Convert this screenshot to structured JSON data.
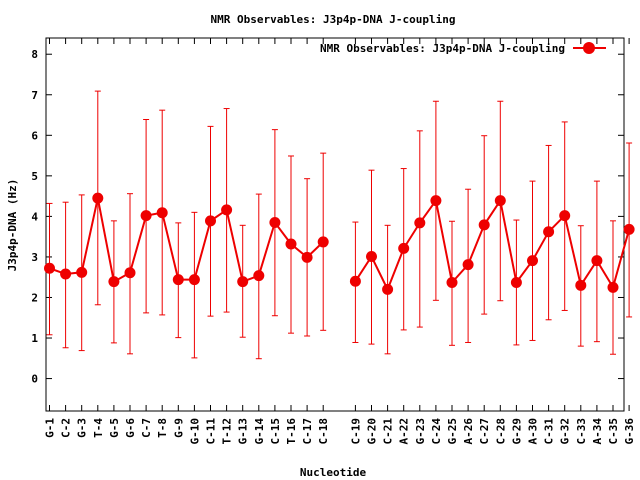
{
  "chart_data": {
    "type": "line",
    "title": "NMR Observables: J3p4p-DNA J-coupling",
    "xlabel": "Nucleotide",
    "ylabel": "J3p4p-DNA (Hz)",
    "ylim": [
      -0.8,
      8.4
    ],
    "yticks": [
      "0",
      "1",
      "2",
      "3",
      "4",
      "5",
      "6",
      "7",
      "8"
    ],
    "grid": false,
    "legend_position": "top-right",
    "color": "#ee0000",
    "series": [
      {
        "name": "NMR Observables: J3p4p-DNA J-coupling",
        "segments": [
          {
            "categories": [
              "G-1",
              "C-2",
              "G-3",
              "T-4",
              "G-5",
              "G-6",
              "C-7",
              "T-8",
              "G-9",
              "G-10",
              "C-11",
              "T-12",
              "G-13",
              "G-14",
              "C-15",
              "T-16",
              "C-17",
              "C-18"
            ],
            "values": [
              2.72,
              2.58,
              2.62,
              4.45,
              2.39,
              2.61,
              4.02,
              4.09,
              2.44,
              2.44,
              3.89,
              4.16,
              2.39,
              2.54,
              3.85,
              3.32,
              2.99,
              3.37
            ],
            "err_low": [
              1.08,
              0.76,
              0.69,
              1.82,
              0.88,
              0.61,
              1.62,
              1.57,
              1.01,
              0.51,
              1.54,
              1.64,
              1.02,
              0.49,
              1.55,
              1.12,
              1.05,
              1.19
            ],
            "err_high": [
              4.32,
              4.35,
              4.53,
              7.09,
              3.89,
              4.56,
              6.39,
              6.62,
              3.84,
              4.1,
              6.22,
              6.66,
              3.78,
              4.55,
              6.14,
              5.49,
              4.93,
              5.56
            ]
          },
          {
            "categories": [
              "C-19",
              "G-20",
              "C-21",
              "A-22",
              "G-23",
              "C-24",
              "G-25",
              "A-26",
              "C-27",
              "C-28",
              "G-29",
              "A-30",
              "C-31",
              "G-32",
              "C-33",
              "A-34",
              "C-35",
              "G-36"
            ],
            "values": [
              2.4,
              3.01,
              2.2,
              3.21,
              3.84,
              4.39,
              2.37,
              2.81,
              3.79,
              4.39,
              2.37,
              2.91,
              3.62,
              4.02,
              2.3,
              2.91,
              2.25,
              3.68
            ],
            "err_low": [
              0.89,
              0.85,
              0.61,
              1.2,
              1.27,
              1.93,
              0.82,
              0.89,
              1.59,
              1.92,
              0.83,
              0.94,
              1.45,
              1.68,
              0.8,
              0.91,
              0.6,
              1.52
            ],
            "err_high": [
              3.86,
              5.14,
              3.78,
              5.18,
              6.11,
              6.84,
              3.88,
              4.67,
              5.99,
              6.84,
              3.91,
              4.87,
              5.75,
              6.33,
              3.77,
              4.87,
              3.89,
              5.81
            ]
          }
        ]
      }
    ]
  }
}
